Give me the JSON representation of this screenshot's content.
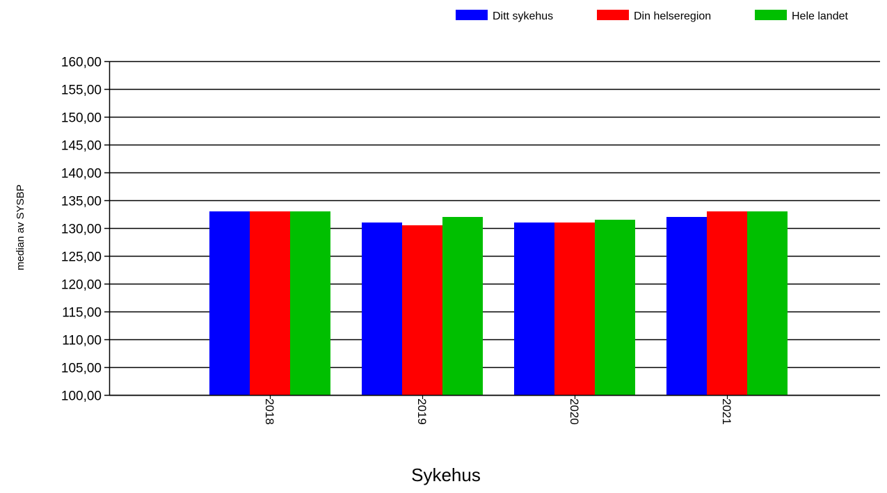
{
  "chart_data": {
    "type": "bar",
    "title": "",
    "xlabel": "Sykehus",
    "ylabel": "median av SYSBP",
    "categories": [
      "2018",
      "2019",
      "2020",
      "2021"
    ],
    "series": [
      {
        "name": "Ditt sykehus",
        "color": "#0000ff",
        "values": [
          133,
          131,
          131,
          132
        ]
      },
      {
        "name": "Din helseregion",
        "color": "#ff0000",
        "values": [
          133,
          130.5,
          131,
          133
        ]
      },
      {
        "name": "Hele landet",
        "color": "#00bf00",
        "values": [
          133,
          132,
          131.5,
          133
        ]
      }
    ],
    "ylim": [
      100,
      160
    ],
    "ytick_step": 5,
    "ytick_labels": [
      "100,00",
      "105,00",
      "110,00",
      "115,00",
      "120,00",
      "125,00",
      "130,00",
      "135,00",
      "140,00",
      "145,00",
      "150,00",
      "155,00",
      "160,00"
    ],
    "grid": "horizontal",
    "legend_position": "top-right",
    "xtick_rotation": "vertical"
  }
}
